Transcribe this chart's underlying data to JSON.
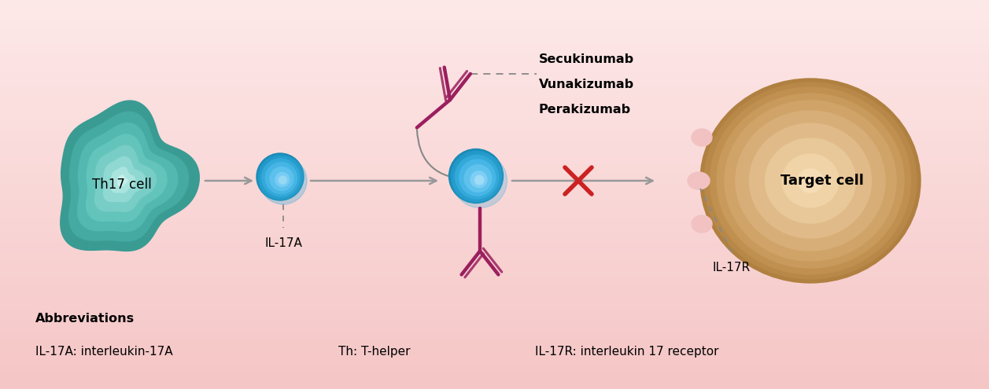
{
  "bg_color": "#f9d0d0",
  "th17_cell_label": "Th17 cell",
  "il17a_label": "IL-17A",
  "il17r_label": "IL-17R",
  "target_cell_label": "Target cell",
  "antibody_color": "#9b1f5e",
  "arrow_color": "#999999",
  "inhibit_cross_color": "#cc2222",
  "drug_labels": [
    "Secukinumab",
    "Vunakizumab",
    "Perakizumab"
  ],
  "abbrev_title": "Abbreviations",
  "abbrev_line1": "IL-17A: interleukin-17A",
  "abbrev_line2": "Th: T-helper",
  "abbrev_line3": "IL-17R: interleukin 17 receptor",
  "figsize": [
    12.57,
    4.95
  ],
  "dpi": 100
}
